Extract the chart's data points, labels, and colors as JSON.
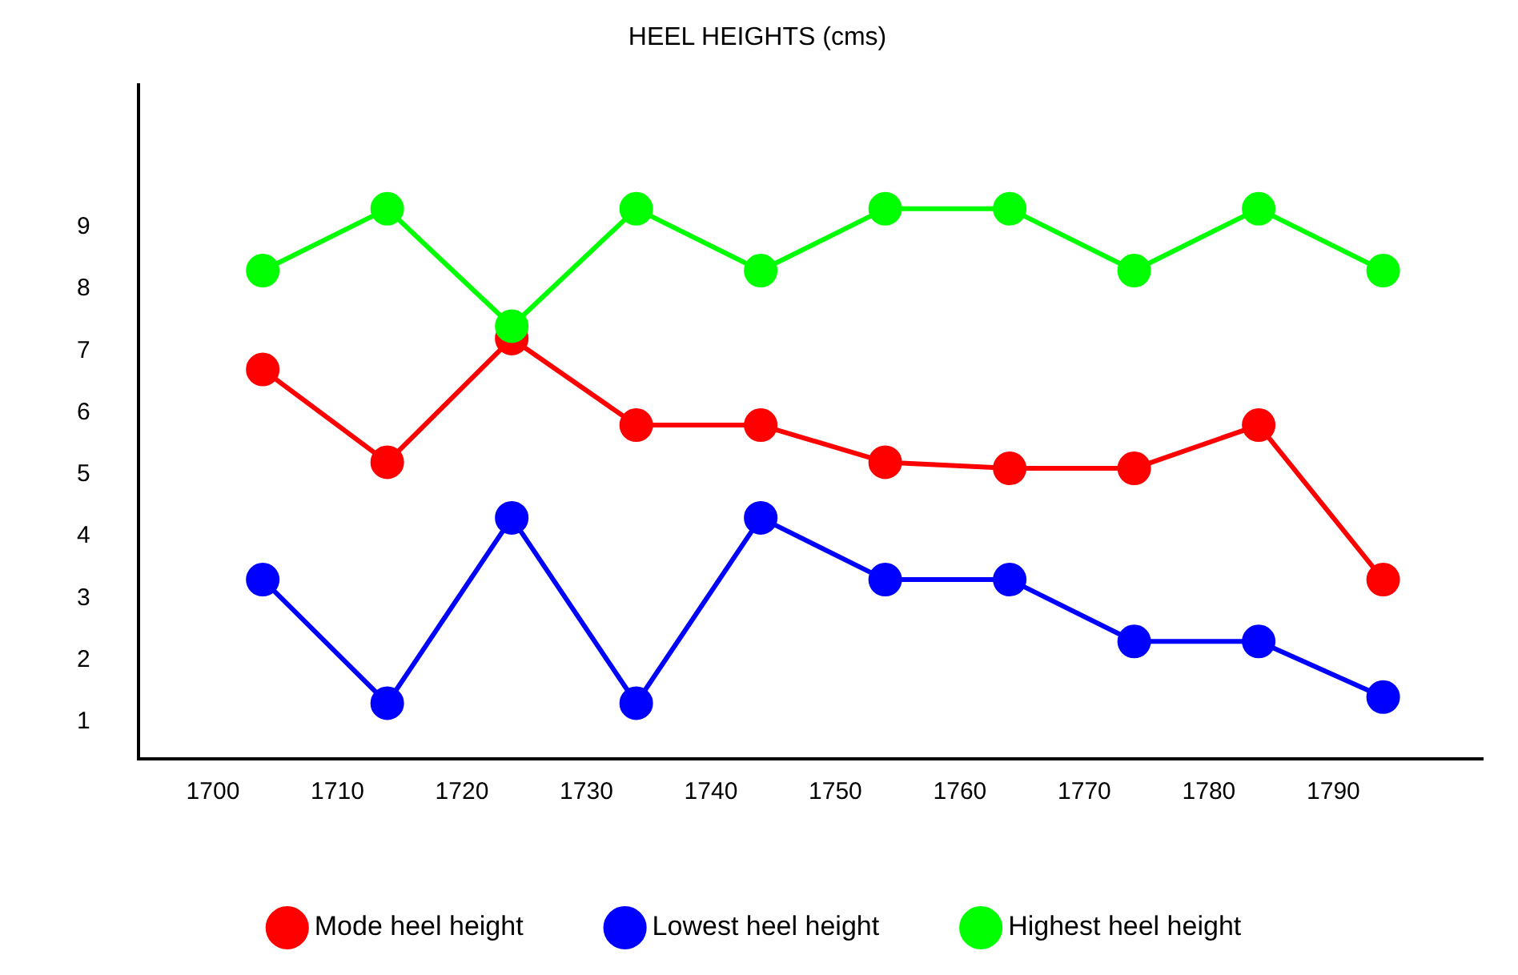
{
  "chart_data": {
    "type": "line",
    "title": "HEEL HEIGHTS (cms)",
    "x": [
      1704,
      1714,
      1724,
      1734,
      1744,
      1754,
      1764,
      1774,
      1784,
      1794
    ],
    "series": [
      {
        "name": "Mode heel height",
        "color": "#ff0000",
        "values": [
          6.7,
          5.2,
          7.2,
          5.8,
          5.8,
          5.2,
          5.1,
          5.1,
          5.8,
          3.3
        ]
      },
      {
        "name": "Lowest heel height",
        "color": "#0000ff",
        "values": [
          3.3,
          1.3,
          4.3,
          1.3,
          4.3,
          3.3,
          3.3,
          2.3,
          2.3,
          1.4
        ]
      },
      {
        "name": "Highest heel height",
        "color": "#00ff00",
        "values": [
          8.3,
          9.3,
          7.4,
          9.3,
          8.3,
          9.3,
          9.3,
          8.3,
          9.3,
          8.3
        ]
      }
    ],
    "xlim": [
      1694,
      1802
    ],
    "xticks": [
      1700,
      1710,
      1720,
      1730,
      1740,
      1750,
      1760,
      1770,
      1780,
      1790
    ],
    "ylim": [
      0.4,
      11.3
    ],
    "yticks": [
      1,
      2,
      3,
      4,
      5,
      6,
      7,
      8,
      9
    ],
    "grid": false,
    "legend": "bottom",
    "marker": "circle",
    "line_style": "solid"
  }
}
